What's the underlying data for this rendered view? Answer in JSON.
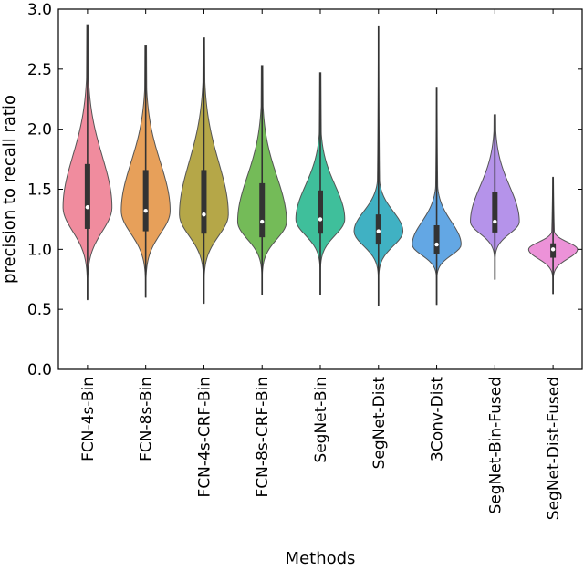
{
  "chart_data": {
    "type": "violin",
    "xlabel": "Methods",
    "ylabel": "precision to recall ratio",
    "ylim": [
      0,
      3.0
    ],
    "yticks": [
      "0.0",
      "0.5",
      "1.0",
      "1.5",
      "2.0",
      "2.5",
      "3.0"
    ],
    "grid": false,
    "categories": [
      "FCN-4s-Bin",
      "FCN-8s-Bin",
      "FCN-4s-CRF-Bin",
      "FCN-8s-CRF-Bin",
      "SegNet-Bin",
      "SegNet-Dist",
      "3Conv-Dist",
      "SegNet-Bin-Fused",
      "SegNet-Dist-Fused"
    ],
    "series": [
      {
        "color": "#f08c9e",
        "min": 0.58,
        "q1": 1.17,
        "median": 1.35,
        "q3": 1.71,
        "max": 2.87
      },
      {
        "color": "#e7a05a",
        "min": 0.6,
        "q1": 1.15,
        "median": 1.32,
        "q3": 1.66,
        "max": 2.7
      },
      {
        "color": "#b5a748",
        "min": 0.55,
        "q1": 1.13,
        "median": 1.29,
        "q3": 1.66,
        "max": 2.76
      },
      {
        "color": "#74bb58",
        "min": 0.62,
        "q1": 1.1,
        "median": 1.23,
        "q3": 1.55,
        "max": 2.53
      },
      {
        "color": "#3fbf9b",
        "min": 0.62,
        "q1": 1.13,
        "median": 1.25,
        "q3": 1.49,
        "max": 2.47
      },
      {
        "color": "#40b1c3",
        "min": 0.53,
        "q1": 1.04,
        "median": 1.15,
        "q3": 1.29,
        "max": 2.86
      },
      {
        "color": "#63a7e4",
        "min": 0.54,
        "q1": 0.96,
        "median": 1.04,
        "q3": 1.2,
        "max": 2.35
      },
      {
        "color": "#b593ea",
        "min": 0.75,
        "q1": 1.14,
        "median": 1.23,
        "q3": 1.48,
        "max": 2.12
      },
      {
        "color": "#ec92d8",
        "min": 0.63,
        "q1": 0.93,
        "median": 1.0,
        "q3": 1.05,
        "max": 1.6
      }
    ]
  }
}
